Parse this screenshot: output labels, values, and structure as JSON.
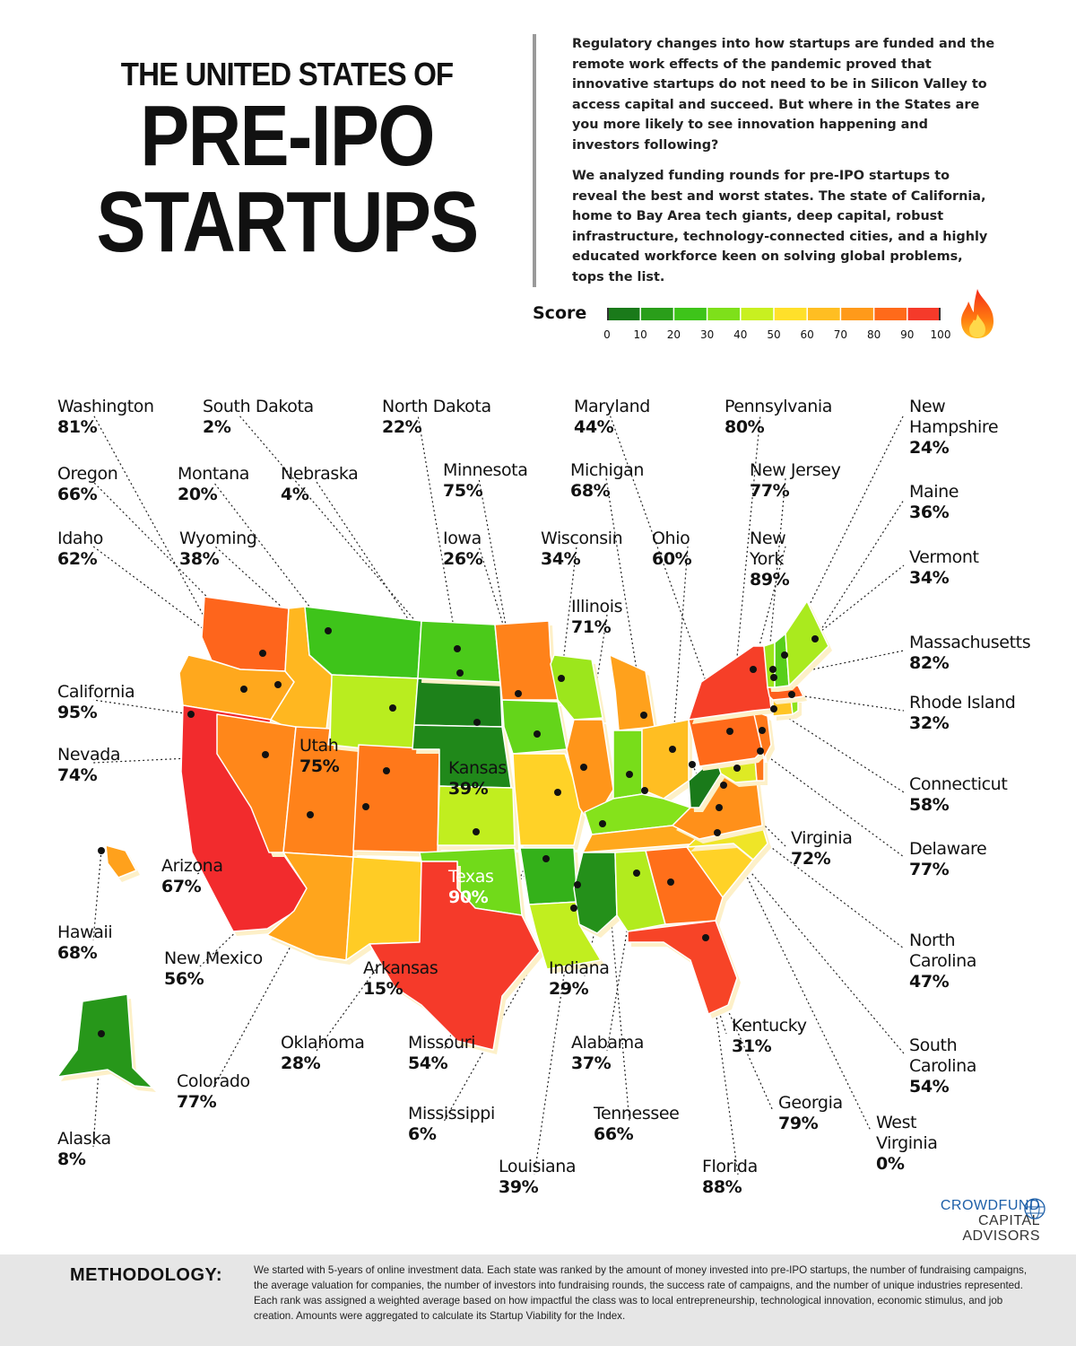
{
  "title": {
    "line1": "THE UNITED STATES OF",
    "line2": "PRE-IPO",
    "line3": "STARTUPS"
  },
  "intro": {
    "p1": "Regulatory changes into how startups are funded and the remote work effects of the pandemic proved that innovative startups do not need to be in Silicon Valley to access capital and succeed. But where in the States are you more likely to see innovation happening and investors following?",
    "p2": "We analyzed funding rounds for pre-IPO startups to reveal the best and worst states. The state of California, home to Bay Area tech giants, deep capital, robust infrastructure, technology-connected cities, and a highly educated workforce keen on solving global problems, tops the list."
  },
  "legend": {
    "label": "Score",
    "ticks": [
      "0",
      "10",
      "20",
      "30",
      "40",
      "50",
      "60",
      "70",
      "80",
      "90",
      "100"
    ],
    "colors": [
      "#1a7a1a",
      "#2a9e1a",
      "#3ec41a",
      "#7ee01a",
      "#c8f020",
      "#ffe02a",
      "#ffbe22",
      "#ff9a1a",
      "#ff6a1a",
      "#f53a2a",
      "#ee1c30"
    ],
    "icon": "flame-icon"
  },
  "chart_data": {
    "type": "choropleth",
    "title": "THE UNITED STATES OF PRE-IPO STARTUPS",
    "value_label": "Score",
    "range": [
      0,
      100
    ],
    "states": [
      {
        "name": "Washington",
        "value": 81,
        "label": "81%"
      },
      {
        "name": "Oregon",
        "value": 66,
        "label": "66%"
      },
      {
        "name": "Idaho",
        "value": 62,
        "label": "62%"
      },
      {
        "name": "California",
        "value": 95,
        "label": "95%"
      },
      {
        "name": "Nevada",
        "value": 74,
        "label": "74%"
      },
      {
        "name": "Utah",
        "value": 75,
        "label": "75%"
      },
      {
        "name": "Arizona",
        "value": 67,
        "label": "67%"
      },
      {
        "name": "Hawaii",
        "value": 68,
        "label": "68%"
      },
      {
        "name": "Alaska",
        "value": 8,
        "label": "8%"
      },
      {
        "name": "Montana",
        "value": 20,
        "label": "20%"
      },
      {
        "name": "Wyoming",
        "value": 38,
        "label": "38%"
      },
      {
        "name": "Colorado",
        "value": 77,
        "label": "77%"
      },
      {
        "name": "New Mexico",
        "value": 56,
        "label": "56%"
      },
      {
        "name": "South Dakota",
        "value": 2,
        "label": "2%"
      },
      {
        "name": "North Dakota",
        "value": 22,
        "label": "22%"
      },
      {
        "name": "Nebraska",
        "value": 4,
        "label": "4%"
      },
      {
        "name": "Kansas",
        "value": 39,
        "label": "39%"
      },
      {
        "name": "Oklahoma",
        "value": 28,
        "label": "28%"
      },
      {
        "name": "Texas",
        "value": 90,
        "label": "90%"
      },
      {
        "name": "Minnesota",
        "value": 75,
        "label": "75%"
      },
      {
        "name": "Iowa",
        "value": 26,
        "label": "26%"
      },
      {
        "name": "Missouri",
        "value": 54,
        "label": "54%"
      },
      {
        "name": "Arkansas",
        "value": 15,
        "label": "15%"
      },
      {
        "name": "Louisiana",
        "value": 39,
        "label": "39%"
      },
      {
        "name": "Wisconsin",
        "value": 34,
        "label": "34%"
      },
      {
        "name": "Illinois",
        "value": 71,
        "label": "71%"
      },
      {
        "name": "Michigan",
        "value": 68,
        "label": "68%"
      },
      {
        "name": "Indiana",
        "value": 29,
        "label": "29%"
      },
      {
        "name": "Ohio",
        "value": 60,
        "label": "60%"
      },
      {
        "name": "Kentucky",
        "value": 31,
        "label": "31%"
      },
      {
        "name": "Tennessee",
        "value": 66,
        "label": "66%"
      },
      {
        "name": "Mississippi",
        "value": 6,
        "label": "6%"
      },
      {
        "name": "Alabama",
        "value": 37,
        "label": "37%"
      },
      {
        "name": "Georgia",
        "value": 79,
        "label": "79%"
      },
      {
        "name": "Florida",
        "value": 88,
        "label": "88%"
      },
      {
        "name": "South Carolina",
        "value": 54,
        "label": "54%"
      },
      {
        "name": "North Carolina",
        "value": 47,
        "label": "47%"
      },
      {
        "name": "Virginia",
        "value": 72,
        "label": "72%"
      },
      {
        "name": "West Virginia",
        "value": 0,
        "label": "0%"
      },
      {
        "name": "Maryland",
        "value": 44,
        "label": "44%"
      },
      {
        "name": "Delaware",
        "value": 77,
        "label": "77%"
      },
      {
        "name": "Pennsylvania",
        "value": 80,
        "label": "80%"
      },
      {
        "name": "New Jersey",
        "value": 77,
        "label": "77%"
      },
      {
        "name": "New York",
        "value": 89,
        "label": "89%"
      },
      {
        "name": "Connecticut",
        "value": 58,
        "label": "58%"
      },
      {
        "name": "Rhode Island",
        "value": 32,
        "label": "32%"
      },
      {
        "name": "Massachusetts",
        "value": 82,
        "label": "82%"
      },
      {
        "name": "Vermont",
        "value": 34,
        "label": "34%"
      },
      {
        "name": "New Hampshire",
        "value": 24,
        "label": "24%"
      },
      {
        "name": "Maine",
        "value": 36,
        "label": "36%"
      }
    ]
  },
  "logo": {
    "line1": "CROWDFUND",
    "line2": "CAPITAL",
    "line3": "ADVISORS"
  },
  "methodology": {
    "heading": "METHODOLOGY:",
    "text": "We started with 5-years of online investment data. Each state was ranked by the amount of money invested into pre-IPO startups, the number of fundraising campaigns, the average valuation for companies, the number of investors into fundraising rounds, the success rate of campaigns, and the number of unique industries represented. Each rank was assigned a weighted average based on how impactful the class was to local entrepreneurship, technological innovation, economic stimulus, and job creation. Amounts were aggregated to calculate its Startup Viability for the Index."
  }
}
